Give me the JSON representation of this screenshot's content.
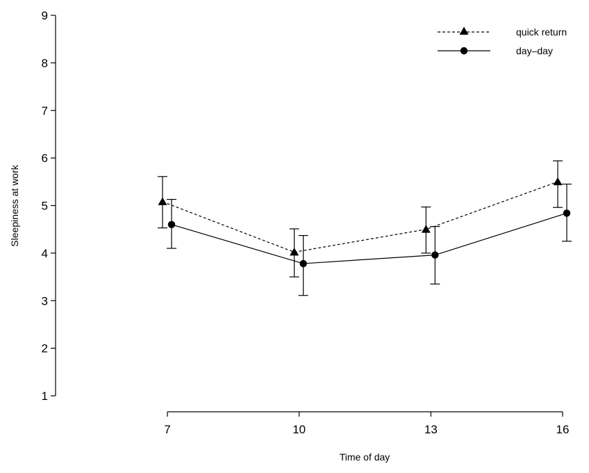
{
  "chart_data": {
    "type": "line",
    "title": "",
    "xlabel": "Time of day",
    "ylabel": "Sleepiness at work",
    "x": [
      7,
      10,
      13,
      16
    ],
    "x_tick_labels": [
      "7",
      "10",
      "13",
      "16"
    ],
    "y_ticks": [
      1,
      2,
      3,
      4,
      5,
      6,
      7,
      8,
      9
    ],
    "y_tick_labels": [
      "1",
      "2",
      "3",
      "4",
      "5",
      "6",
      "7",
      "8",
      "9"
    ],
    "xlim": [
      7,
      16
    ],
    "ylim": [
      1,
      9
    ],
    "grid": false,
    "legend_position": "top-right",
    "series": [
      {
        "name": "quick return",
        "marker": "triangle",
        "line_style": "dashed",
        "values": [
          5.08,
          4.02,
          4.5,
          5.5
        ],
        "err_low": [
          4.53,
          3.5,
          4.0,
          4.96
        ],
        "err_high": [
          5.61,
          4.51,
          4.97,
          5.94
        ]
      },
      {
        "name": "day–day",
        "marker": "circle",
        "line_style": "solid",
        "values": [
          4.6,
          3.78,
          3.96,
          4.84
        ],
        "err_low": [
          4.1,
          3.11,
          3.35,
          4.25
        ],
        "err_high": [
          5.13,
          4.37,
          4.56,
          5.45
        ]
      }
    ]
  }
}
